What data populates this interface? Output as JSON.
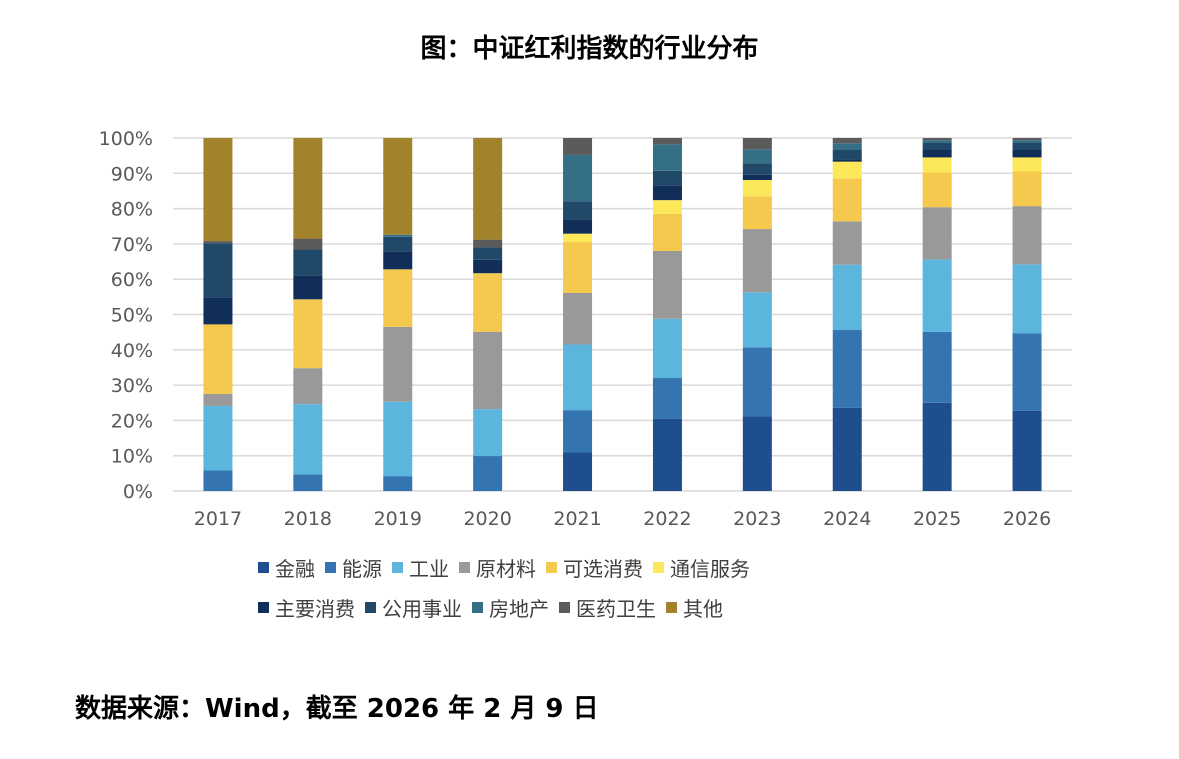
{
  "title": "图：中证红利指数的行业分布",
  "footer": "数据来源：Wind，截至 2026 年 2 月 9 日",
  "chart_data": {
    "type": "bar",
    "stacked": true,
    "title": "",
    "xlabel": "",
    "ylabel": "",
    "ylim": [
      0,
      100
    ],
    "y_ticks": [
      "0%",
      "10%",
      "20%",
      "30%",
      "40%",
      "50%",
      "60%",
      "70%",
      "80%",
      "90%",
      "100%"
    ],
    "grid": true,
    "legend_position": "bottom",
    "categories": [
      "2017",
      "2018",
      "2019",
      "2020",
      "2021",
      "2022",
      "2023",
      "2024",
      "2025",
      "2026"
    ],
    "series": [
      {
        "name": "金融",
        "color": "#1f4e8f",
        "values": [
          0,
          0,
          0,
          0,
          10.9,
          20.5,
          21.2,
          23.6,
          25.0,
          22.7
        ]
      },
      {
        "name": "能源",
        "color": "#3474b0",
        "values": [
          5.8,
          4.7,
          4.2,
          9.9,
          12.0,
          11.5,
          19.5,
          22.0,
          20.1,
          22.0
        ]
      },
      {
        "name": "工业",
        "color": "#5bb5dd",
        "values": [
          18.3,
          19.9,
          21.1,
          13.3,
          18.6,
          16.8,
          15.6,
          18.5,
          20.5,
          19.5
        ]
      },
      {
        "name": "原材料",
        "color": "#999999",
        "values": [
          3.4,
          10.2,
          21.2,
          21.9,
          14.6,
          19.2,
          17.9,
          12.3,
          14.8,
          16.5
        ]
      },
      {
        "name": "可选消费",
        "color": "#f5c94e",
        "values": [
          19.7,
          19.5,
          16.3,
          16.6,
          14.4,
          10.5,
          9.3,
          12.2,
          9.8,
          9.8
        ]
      },
      {
        "name": "通信服务",
        "color": "#fde85a",
        "values": [
          0,
          0,
          0,
          0,
          2.4,
          3.9,
          4.6,
          4.7,
          4.3,
          4.0
        ]
      },
      {
        "name": "主要消费",
        "color": "#102e57",
        "values": [
          7.7,
          6.8,
          5.1,
          3.8,
          4.1,
          4.2,
          1.5,
          0.7,
          2.1,
          2.1
        ]
      },
      {
        "name": "公用事业",
        "color": "#1f4869",
        "values": [
          15.3,
          7.3,
          4.1,
          3.5,
          5.1,
          4.1,
          3.2,
          2.8,
          2.1,
          2.1
        ]
      },
      {
        "name": "房地产",
        "color": "#346f86",
        "values": [
          0,
          0,
          0.6,
          0,
          13.1,
          7.5,
          4.0,
          1.7,
          0.7,
          0.7
        ]
      },
      {
        "name": "医药卫生",
        "color": "#5b5b5b",
        "values": [
          0.6,
          3.1,
          0,
          2.2,
          4.8,
          1.8,
          3.2,
          1.5,
          0.6,
          0.6
        ]
      },
      {
        "name": "其他",
        "color": "#a3822c",
        "values": [
          29.2,
          28.5,
          27.4,
          28.8,
          0,
          0,
          0,
          0,
          0,
          0
        ]
      }
    ]
  }
}
